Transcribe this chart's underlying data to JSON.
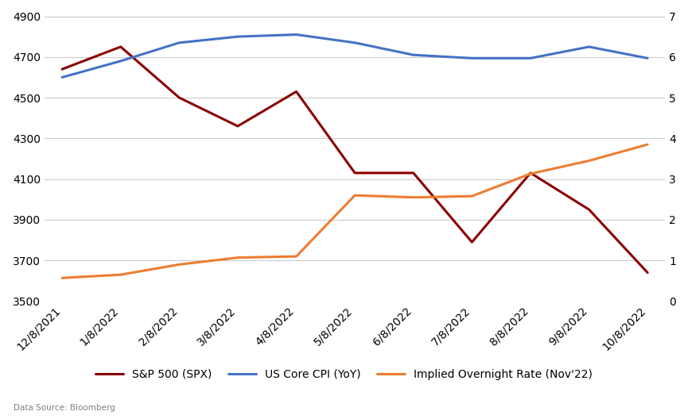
{
  "x_labels": [
    "12/8/2021",
    "1/8/2022",
    "2/8/2022",
    "3/8/2022",
    "4/8/2022",
    "5/8/2022",
    "6/8/2022",
    "7/8/2022",
    "8/8/2022",
    "9/8/2022",
    "10/8/2022"
  ],
  "spx": [
    4640,
    4750,
    4500,
    4360,
    4530,
    4130,
    4130,
    3790,
    4130,
    3950,
    3640
  ],
  "cpi": [
    5.5,
    5.9,
    6.35,
    6.5,
    6.55,
    6.35,
    6.05,
    5.97,
    5.97,
    6.25,
    5.97
  ],
  "overnight": [
    0.57,
    0.65,
    0.9,
    1.07,
    1.1,
    2.6,
    2.55,
    2.58,
    3.13,
    3.45,
    3.85
  ],
  "spx_color": "#8B0000",
  "cpi_color": "#4472C4",
  "overnight_color": "#ED7D31",
  "left_ylim": [
    3500,
    4900
  ],
  "right_ylim": [
    0,
    7
  ],
  "left_yticks": [
    3500,
    3700,
    3900,
    4100,
    4300,
    4500,
    4700,
    4900
  ],
  "right_yticks": [
    0,
    1,
    2,
    3,
    4,
    5,
    6,
    7
  ],
  "legend_labels": [
    "S&P 500 (SPX)",
    "US Core CPI (YoY)",
    "Implied Overnight Rate (Nov'22)"
  ],
  "source_text": "Data Source: Bloomberg",
  "background_color": "#FFFFFF",
  "grid_color": "#CCCCCC",
  "line_width": 2.2
}
